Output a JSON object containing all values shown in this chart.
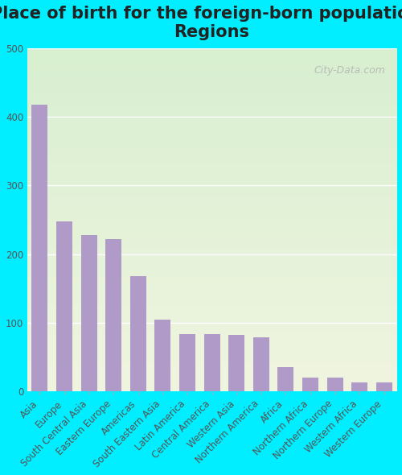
{
  "title": "Place of birth for the foreign-born population -\nRegions",
  "categories": [
    "Asia",
    "Europe",
    "South Central Asia",
    "Eastern Europe",
    "Americas",
    "South Eastern Asia",
    "Latin America",
    "Central America",
    "Western Asia",
    "Northern America",
    "Africa",
    "Northern Africa",
    "Northern Europe",
    "Western Africa",
    "Western Europe"
  ],
  "values": [
    418,
    248,
    228,
    222,
    168,
    104,
    83,
    83,
    82,
    79,
    35,
    20,
    20,
    13,
    13
  ],
  "bar_color": "#b09ac8",
  "background_color": "#00eeff",
  "plot_bg_top": "#d8efd0",
  "plot_bg_bottom": "#f0f5e0",
  "title_fontsize": 15,
  "tick_fontsize": 8.5,
  "ylim": [
    0,
    500
  ],
  "yticks": [
    0,
    100,
    200,
    300,
    400,
    500
  ],
  "watermark_text": "City-Data.com"
}
